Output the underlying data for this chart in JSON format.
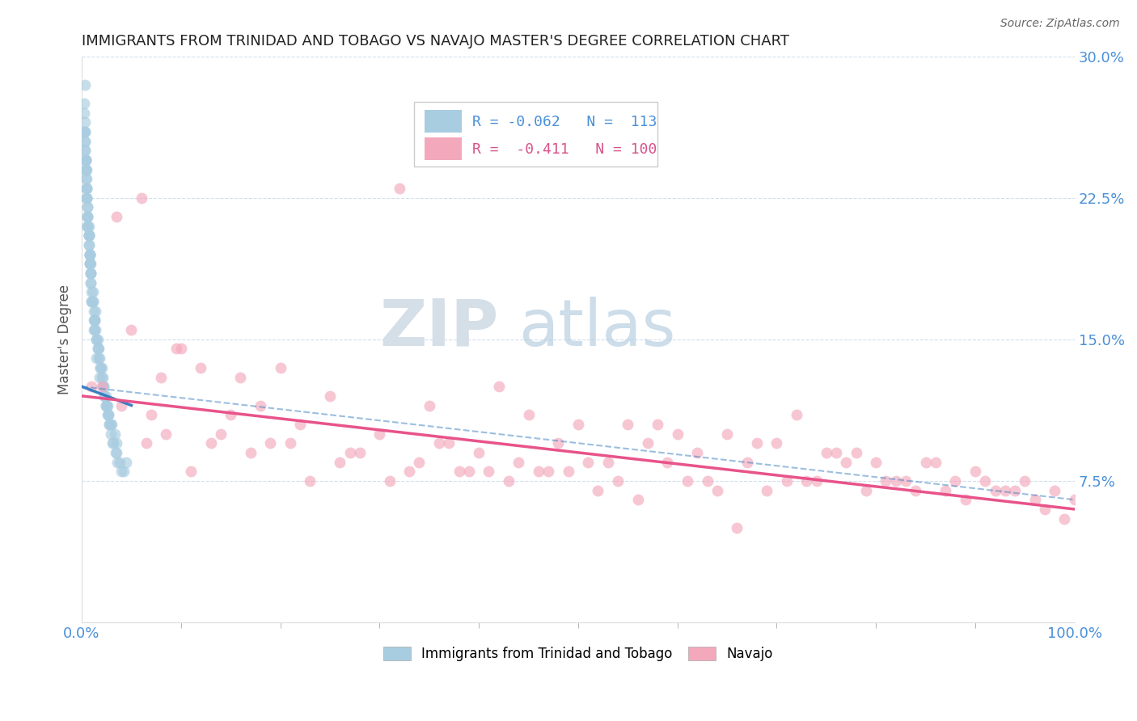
{
  "title": "IMMIGRANTS FROM TRINIDAD AND TOBAGO VS NAVAJO MASTER'S DEGREE CORRELATION CHART",
  "source": "Source: ZipAtlas.com",
  "ylabel": "Master's Degree",
  "xlim": [
    0,
    100
  ],
  "ylim": [
    0,
    30
  ],
  "yticks": [
    0,
    7.5,
    15,
    22.5,
    30
  ],
  "yticklabels": [
    "",
    "7.5%",
    "15.0%",
    "22.5%",
    "30.0%"
  ],
  "blue_color": "#a8cce0",
  "pink_color": "#f4a8bc",
  "trend_blue_color": "#3a7fc1",
  "trend_pink_color": "#e8538a",
  "blue_scatter_x": [
    0.3,
    0.5,
    0.8,
    1.0,
    0.2,
    1.2,
    0.6,
    1.5,
    0.4,
    1.8,
    0.9,
    2.1,
    1.3,
    2.4,
    0.7,
    2.7,
    1.6,
    3.0,
    0.3,
    3.3,
    0.5,
    3.5,
    1.1,
    0.8,
    2.0,
    0.4,
    1.4,
    0.6,
    2.3,
    0.2,
    1.7,
    0.9,
    2.6,
    0.3,
    1.0,
    2.9,
    0.7,
    1.3,
    0.5,
    2.2,
    0.8,
    1.6,
    0.4,
    2.5,
    0.6,
    1.9,
    0.3,
    2.8,
    0.9,
    3.1,
    0.2,
    1.2,
    0.7,
    2.4,
    0.5,
    1.5,
    0.4,
    2.7,
    0.8,
    3.4,
    0.6,
    1.1,
    0.3,
    2.0,
    0.7,
    1.8,
    0.5,
    2.3,
    0.4,
    1.0,
    0.9,
    2.6,
    0.6,
    1.4,
    0.3,
    2.9,
    0.8,
    1.7,
    0.5,
    3.2,
    0.4,
    1.3,
    0.7,
    2.1,
    0.6,
    1.6,
    0.3,
    2.4,
    0.9,
    3.6,
    0.5,
    1.2,
    0.8,
    4.0,
    0.4,
    1.5,
    0.6,
    2.8,
    0.7,
    3.8,
    0.3,
    1.1,
    0.9,
    4.2,
    0.5,
    1.9,
    0.8,
    3.5,
    0.6,
    2.2,
    0.4,
    4.5,
    0.7,
    1.3
  ],
  "blue_scatter_y": [
    28.5,
    24.0,
    19.5,
    17.0,
    26.0,
    15.5,
    21.0,
    14.0,
    23.5,
    13.0,
    18.0,
    12.5,
    16.0,
    11.5,
    20.0,
    11.0,
    15.0,
    10.5,
    25.0,
    10.0,
    22.5,
    9.5,
    17.5,
    19.0,
    13.5,
    24.5,
    16.5,
    21.5,
    12.0,
    27.0,
    14.5,
    18.5,
    11.0,
    26.5,
    17.0,
    10.0,
    20.5,
    15.5,
    23.0,
    12.5,
    19.0,
    14.5,
    24.0,
    11.5,
    22.0,
    13.5,
    25.5,
    10.5,
    18.0,
    9.5,
    27.5,
    16.0,
    21.0,
    12.0,
    23.5,
    15.0,
    24.5,
    11.0,
    19.5,
    9.0,
    22.0,
    17.0,
    26.0,
    13.0,
    20.5,
    14.0,
    23.0,
    12.0,
    24.5,
    17.5,
    18.5,
    11.5,
    21.5,
    15.5,
    25.0,
    10.5,
    19.0,
    14.0,
    22.5,
    9.5,
    24.0,
    16.0,
    20.5,
    13.0,
    21.0,
    14.5,
    25.5,
    11.5,
    18.5,
    8.5,
    23.0,
    16.5,
    19.5,
    8.0,
    24.5,
    15.0,
    21.5,
    10.5,
    20.0,
    8.5,
    26.0,
    17.0,
    19.0,
    8.0,
    22.5,
    13.5,
    19.5,
    9.0,
    21.0,
    12.5,
    24.0,
    8.5,
    20.5,
    16.0
  ],
  "pink_scatter_x": [
    1.0,
    3.5,
    8.0,
    5.0,
    12.0,
    18.0,
    9.5,
    25.0,
    6.0,
    32.0,
    15.0,
    42.0,
    20.0,
    55.0,
    28.0,
    65.0,
    35.0,
    70.0,
    45.0,
    78.0,
    50.0,
    85.0,
    60.0,
    90.0,
    68.0,
    95.0,
    75.0,
    98.0,
    80.0,
    100.0,
    88.0,
    92.0,
    10.0,
    22.0,
    38.0,
    48.0,
    58.0,
    72.0,
    82.0,
    96.0,
    7.0,
    16.0,
    30.0,
    44.0,
    62.0,
    76.0,
    86.0,
    94.0,
    4.0,
    13.0,
    26.0,
    40.0,
    52.0,
    66.0,
    79.0,
    89.0,
    97.0,
    2.0,
    11.0,
    23.0,
    37.0,
    49.0,
    63.0,
    77.0,
    87.0,
    99.0,
    6.5,
    14.0,
    27.0,
    41.0,
    53.0,
    67.0,
    81.0,
    91.0,
    8.5,
    19.0,
    33.0,
    46.0,
    57.0,
    71.0,
    83.0,
    93.0,
    17.0,
    31.0,
    47.0,
    59.0,
    73.0,
    84.0,
    36.0,
    51.0,
    64.0,
    74.0,
    39.0,
    54.0,
    69.0,
    43.0,
    56.0,
    21.0,
    34.0,
    61.0
  ],
  "pink_scatter_y": [
    12.5,
    21.5,
    13.0,
    15.5,
    13.5,
    11.5,
    14.5,
    12.0,
    22.5,
    23.0,
    11.0,
    12.5,
    13.5,
    10.5,
    9.0,
    10.0,
    11.5,
    9.5,
    11.0,
    9.0,
    10.5,
    8.5,
    10.0,
    8.0,
    9.5,
    7.5,
    9.0,
    7.0,
    8.5,
    6.5,
    7.5,
    7.0,
    14.5,
    10.5,
    8.0,
    9.5,
    10.5,
    11.0,
    7.5,
    6.5,
    11.0,
    13.0,
    10.0,
    8.5,
    9.0,
    9.0,
    8.5,
    7.0,
    11.5,
    9.5,
    8.5,
    9.0,
    7.0,
    5.0,
    7.0,
    6.5,
    6.0,
    12.5,
    8.0,
    7.5,
    9.5,
    8.0,
    7.5,
    8.5,
    7.0,
    5.5,
    9.5,
    10.0,
    9.0,
    8.0,
    8.5,
    8.5,
    7.5,
    7.5,
    10.0,
    9.5,
    8.0,
    8.0,
    9.5,
    7.5,
    7.5,
    7.0,
    9.0,
    7.5,
    8.0,
    8.5,
    7.5,
    7.0,
    9.5,
    8.5,
    7.0,
    7.5,
    8.0,
    7.5,
    7.0,
    7.5,
    6.5,
    9.5,
    8.5,
    7.5
  ],
  "blue_trend_x_start": 0.0,
  "blue_trend_x_end": 5.0,
  "blue_trend_y_start": 12.5,
  "blue_trend_y_end": 11.5,
  "pink_trend_x_start": 0.0,
  "pink_trend_x_end": 100.0,
  "pink_trend_y_start": 12.0,
  "pink_trend_y_end": 6.0,
  "blue_dash_x_start": 0.0,
  "blue_dash_x_end": 100.0,
  "blue_dash_y_start": 12.5,
  "blue_dash_y_end": 6.5
}
